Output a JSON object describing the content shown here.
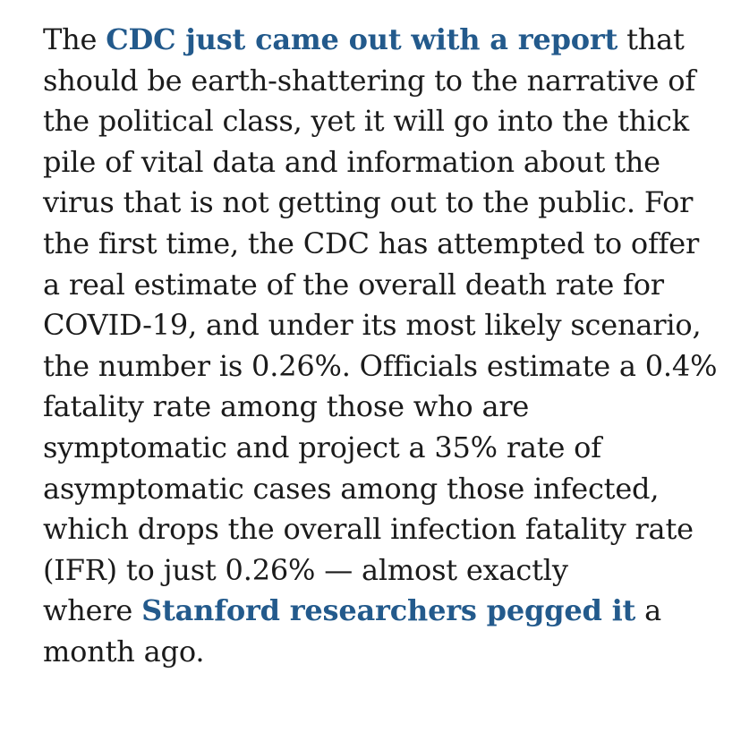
{
  "article": {
    "lines": [
      [
        "The ",
        "CDC just came out with a report",
        " that"
      ],
      [
        "should be earth-shattering to the narrative of"
      ],
      [
        "the political class, yet it will go into the thick"
      ],
      [
        "pile of vital data and information about the"
      ],
      [
        "virus that is not getting out to the public. For"
      ],
      [
        "the first time, the CDC has attempted to offer"
      ],
      [
        "a real estimate of the overall death rate for"
      ],
      [
        "COVID-19, and under its most likely scenario,"
      ],
      [
        "the number is 0.26%. Officials estimate a 0.4%"
      ],
      [
        "fatality rate among those who are"
      ],
      [
        "symptomatic and project a 35% rate of"
      ],
      [
        "asymptomatic cases among those infected,"
      ],
      [
        "which drops the overall infection fatality rate"
      ],
      [
        "(IFR) to just 0.26% — almost exactly"
      ],
      [
        "where ",
        "Stanford researchers pegged it",
        " a"
      ],
      [
        "month ago."
      ]
    ],
    "link_color": "#235a8c",
    "text_color": "#1b1b1b"
  }
}
